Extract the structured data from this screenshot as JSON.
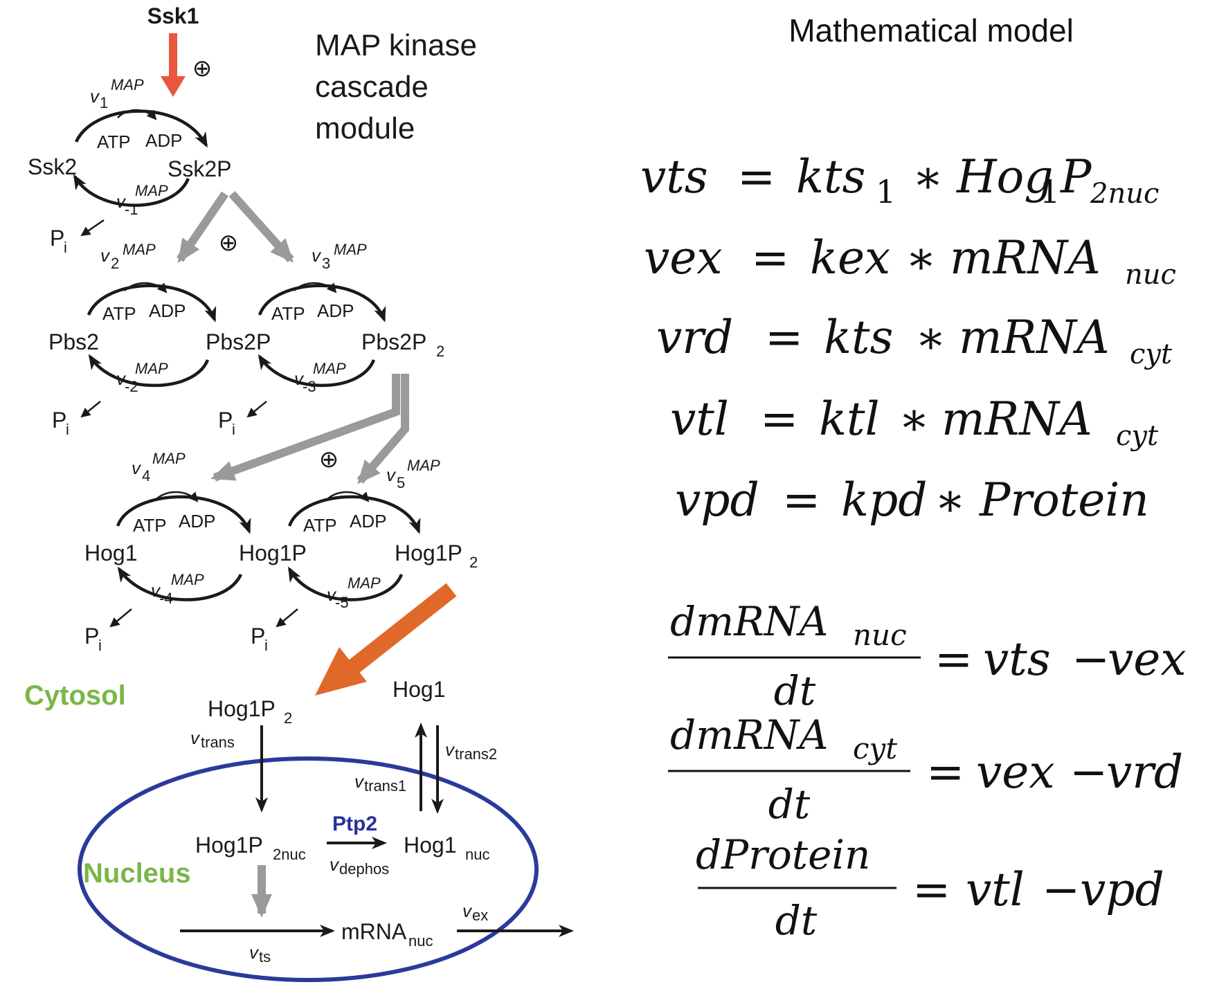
{
  "title": "Mathematical model",
  "diagram": {
    "module_title": [
      "MAP kinase",
      "cascade",
      "module"
    ],
    "species": {
      "ssk1": "Ssk1",
      "ssk2": "Ssk2",
      "ssk2p": "Ssk2P",
      "pbs2": "Pbs2",
      "pbs2p": "Pbs2P",
      "pbs2p2": "Pbs2P",
      "pbs2p2_sub": "2",
      "hog1": "Hog1",
      "hog1p": "Hog1P",
      "hog1p2": "Hog1P",
      "hog1p2_sub": "2",
      "hog1p2_cyt": "Hog1P",
      "hog1p2_cyt_sub": "2",
      "hog1_cyt": "Hog1",
      "hog1p2nuc": "Hog1P",
      "hog1p2nuc_sub": "2nuc",
      "hog1nuc": "Hog1",
      "hog1nuc_sub": "nuc",
      "mrna": "mRNA",
      "mrna_sub": "nuc",
      "pi": "P",
      "pi_sub": "i",
      "atp": "ATP",
      "adp": "ADP",
      "plus": "⊕",
      "ptp2": "Ptp2"
    },
    "rates": {
      "v": "v",
      "map": "MAP",
      "sub1": "1",
      "subm1": "-1",
      "sub2": "2",
      "subm2": "-2",
      "sub3": "3",
      "subm3": "-3",
      "sub4": "4",
      "subm4": "-4",
      "sub5": "5",
      "subm5": "-5",
      "trans": "trans",
      "trans1": "trans1",
      "trans2": "trans2",
      "dephos": "dephos",
      "ts": "ts",
      "ex": "ex"
    },
    "compartments": {
      "cytosol": "Cytosol",
      "nucleus": "Nucleus"
    },
    "colors": {
      "red_arrow": "#e8573d",
      "orange_arrow": "#e0692a",
      "gray_arrow": "#9a9a9a",
      "nucleus_ring": "#2b3a9a",
      "compartment_label": "#7ab648",
      "ptp2": "#2a2f9a"
    }
  },
  "equations": {
    "rates": [
      {
        "lhs": "vts",
        "rhs": "kts",
        "rhs_sub": "1",
        "rhs2": "Hog",
        "rhs2_sub": "1",
        "rhs3": "P",
        "rhs3_sub": "2nuc"
      },
      {
        "lhs": "vex",
        "rhs": "kex",
        "rhs2": "mRNA",
        "rhs2_sub": "nuc"
      },
      {
        "lhs": "vrd",
        "rhs": "kts",
        "rhs2": "mRNA",
        "rhs2_sub": "cyt"
      },
      {
        "lhs": "vtl",
        "rhs": "ktl",
        "rhs2": "mRNA",
        "rhs2_sub": "cyt"
      },
      {
        "lhs": "vpd",
        "rhs": "kpd",
        "rhs2": "Protein"
      }
    ],
    "ops": {
      "eq": "=",
      "mul": "∗",
      "minus": "−"
    },
    "odes": [
      {
        "num": "dmRNA",
        "num_sub": "nuc",
        "den": "dt",
        "r1": "vts",
        "r2": "vex"
      },
      {
        "num": "dmRNA",
        "num_sub": "cyt",
        "den": "dt",
        "r1": "vex",
        "r2": "vrd"
      },
      {
        "num": "dProtein",
        "num_sub": "",
        "den": "dt",
        "r1": "vtl",
        "r2": "vpd"
      }
    ]
  }
}
